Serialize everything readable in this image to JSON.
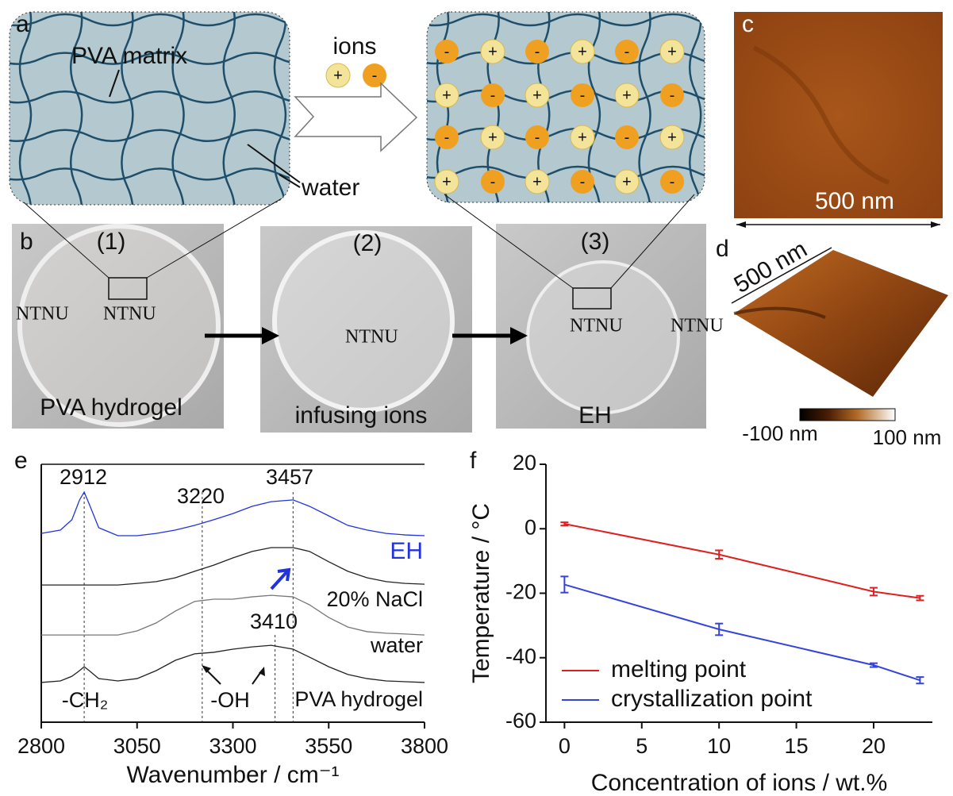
{
  "panel_labels": [
    "a",
    "b",
    "c",
    "d",
    "e",
    "f"
  ],
  "schematic": {
    "matrix_label": "PVA matrix",
    "water_label": "water",
    "ions_label": "ions",
    "plus": "+",
    "minus": "-"
  },
  "photos": [
    {
      "number": "(1)",
      "caption": "PVA hydrogel"
    },
    {
      "number": "(2)",
      "caption": "infusing ions"
    },
    {
      "number": "(3)",
      "caption": "EH"
    }
  ],
  "watermark": "NTNU",
  "afm": {
    "scale_2d": "500 nm",
    "scale_3d": "500 nm",
    "colorbar_min": "-100 nm",
    "colorbar_max": "100 nm"
  },
  "chart_data": [
    {
      "type": "line",
      "xlabel": "Wavenumber / cm⁻¹",
      "x": [
        2800,
        2850,
        2880,
        2900,
        2912,
        2925,
        2950,
        3000,
        3050,
        3100,
        3150,
        3200,
        3250,
        3300,
        3350,
        3400,
        3457,
        3500,
        3550,
        3600,
        3650,
        3700,
        3750,
        3800
      ],
      "xlim": [
        2800,
        3800
      ],
      "xticks": [
        2800,
        3050,
        3300,
        3550,
        3800
      ],
      "ylim": [
        0,
        100
      ],
      "series": [
        {
          "name": "EH",
          "color": "#2233dd",
          "values": [
            73.2,
            74.5,
            78.5,
            86.2,
            89.2,
            84.6,
            75.4,
            72.3,
            72.3,
            73.2,
            74.5,
            76.3,
            78.5,
            80.9,
            83.7,
            85.5,
            86.2,
            83.7,
            80.0,
            76.3,
            74.5,
            73.2,
            72.6,
            72.3
          ]
        },
        {
          "name": "20% NaCl",
          "color": "#222222",
          "values": [
            53.2,
            53.2,
            53.2,
            53.2,
            53.2,
            53.2,
            53.2,
            53.2,
            53.8,
            54.5,
            56.0,
            58.5,
            60.9,
            63.7,
            66.2,
            67.7,
            67.7,
            66.2,
            62.2,
            58.5,
            56.0,
            54.5,
            53.8,
            53.5
          ]
        },
        {
          "name": "water",
          "color": "#777777",
          "values": [
            33.8,
            33.8,
            33.8,
            33.8,
            33.8,
            33.8,
            33.8,
            33.8,
            35.4,
            38.5,
            43.1,
            46.8,
            47.7,
            47.7,
            48.6,
            49.2,
            48.6,
            45.5,
            40.6,
            36.9,
            35.1,
            34.5,
            34.2,
            33.8
          ]
        },
        {
          "name": "PVA hydrogel",
          "color": "#222222",
          "values": [
            15.4,
            16.0,
            17.8,
            20.0,
            21.5,
            20.0,
            16.9,
            16.0,
            16.9,
            20.0,
            24.0,
            26.5,
            27.1,
            28.3,
            29.2,
            29.8,
            28.3,
            25.2,
            21.5,
            18.5,
            16.9,
            16.0,
            15.7,
            15.4
          ]
        }
      ],
      "peak_lines": [
        2912,
        3220,
        3457,
        3410
      ],
      "annotations": [
        "-CH₂",
        "-OH"
      ]
    },
    {
      "type": "line",
      "xlabel": "Concentration of ions / wt.%",
      "ylabel": "Temperature / °C",
      "x": [
        0,
        10,
        20,
        23
      ],
      "xlim": [
        -1.2,
        23.8
      ],
      "xticks": [
        0,
        5,
        10,
        15,
        20
      ],
      "ylim": [
        -60,
        20
      ],
      "yticks": [
        -60,
        -40,
        -20,
        0,
        20
      ],
      "legend": "lower left",
      "series": [
        {
          "name": "melting point",
          "color": "#e02020",
          "values": [
            1.5,
            -8,
            -19.5,
            -21.5
          ],
          "errors": [
            0.5,
            1.3,
            1.2,
            0.7
          ]
        },
        {
          "name": "crystallization point",
          "color": "#3344dd",
          "values": [
            -17.3,
            -31.2,
            -42.3,
            -47
          ],
          "errors": [
            2.5,
            1.8,
            0.6,
            1.0
          ]
        }
      ]
    }
  ]
}
